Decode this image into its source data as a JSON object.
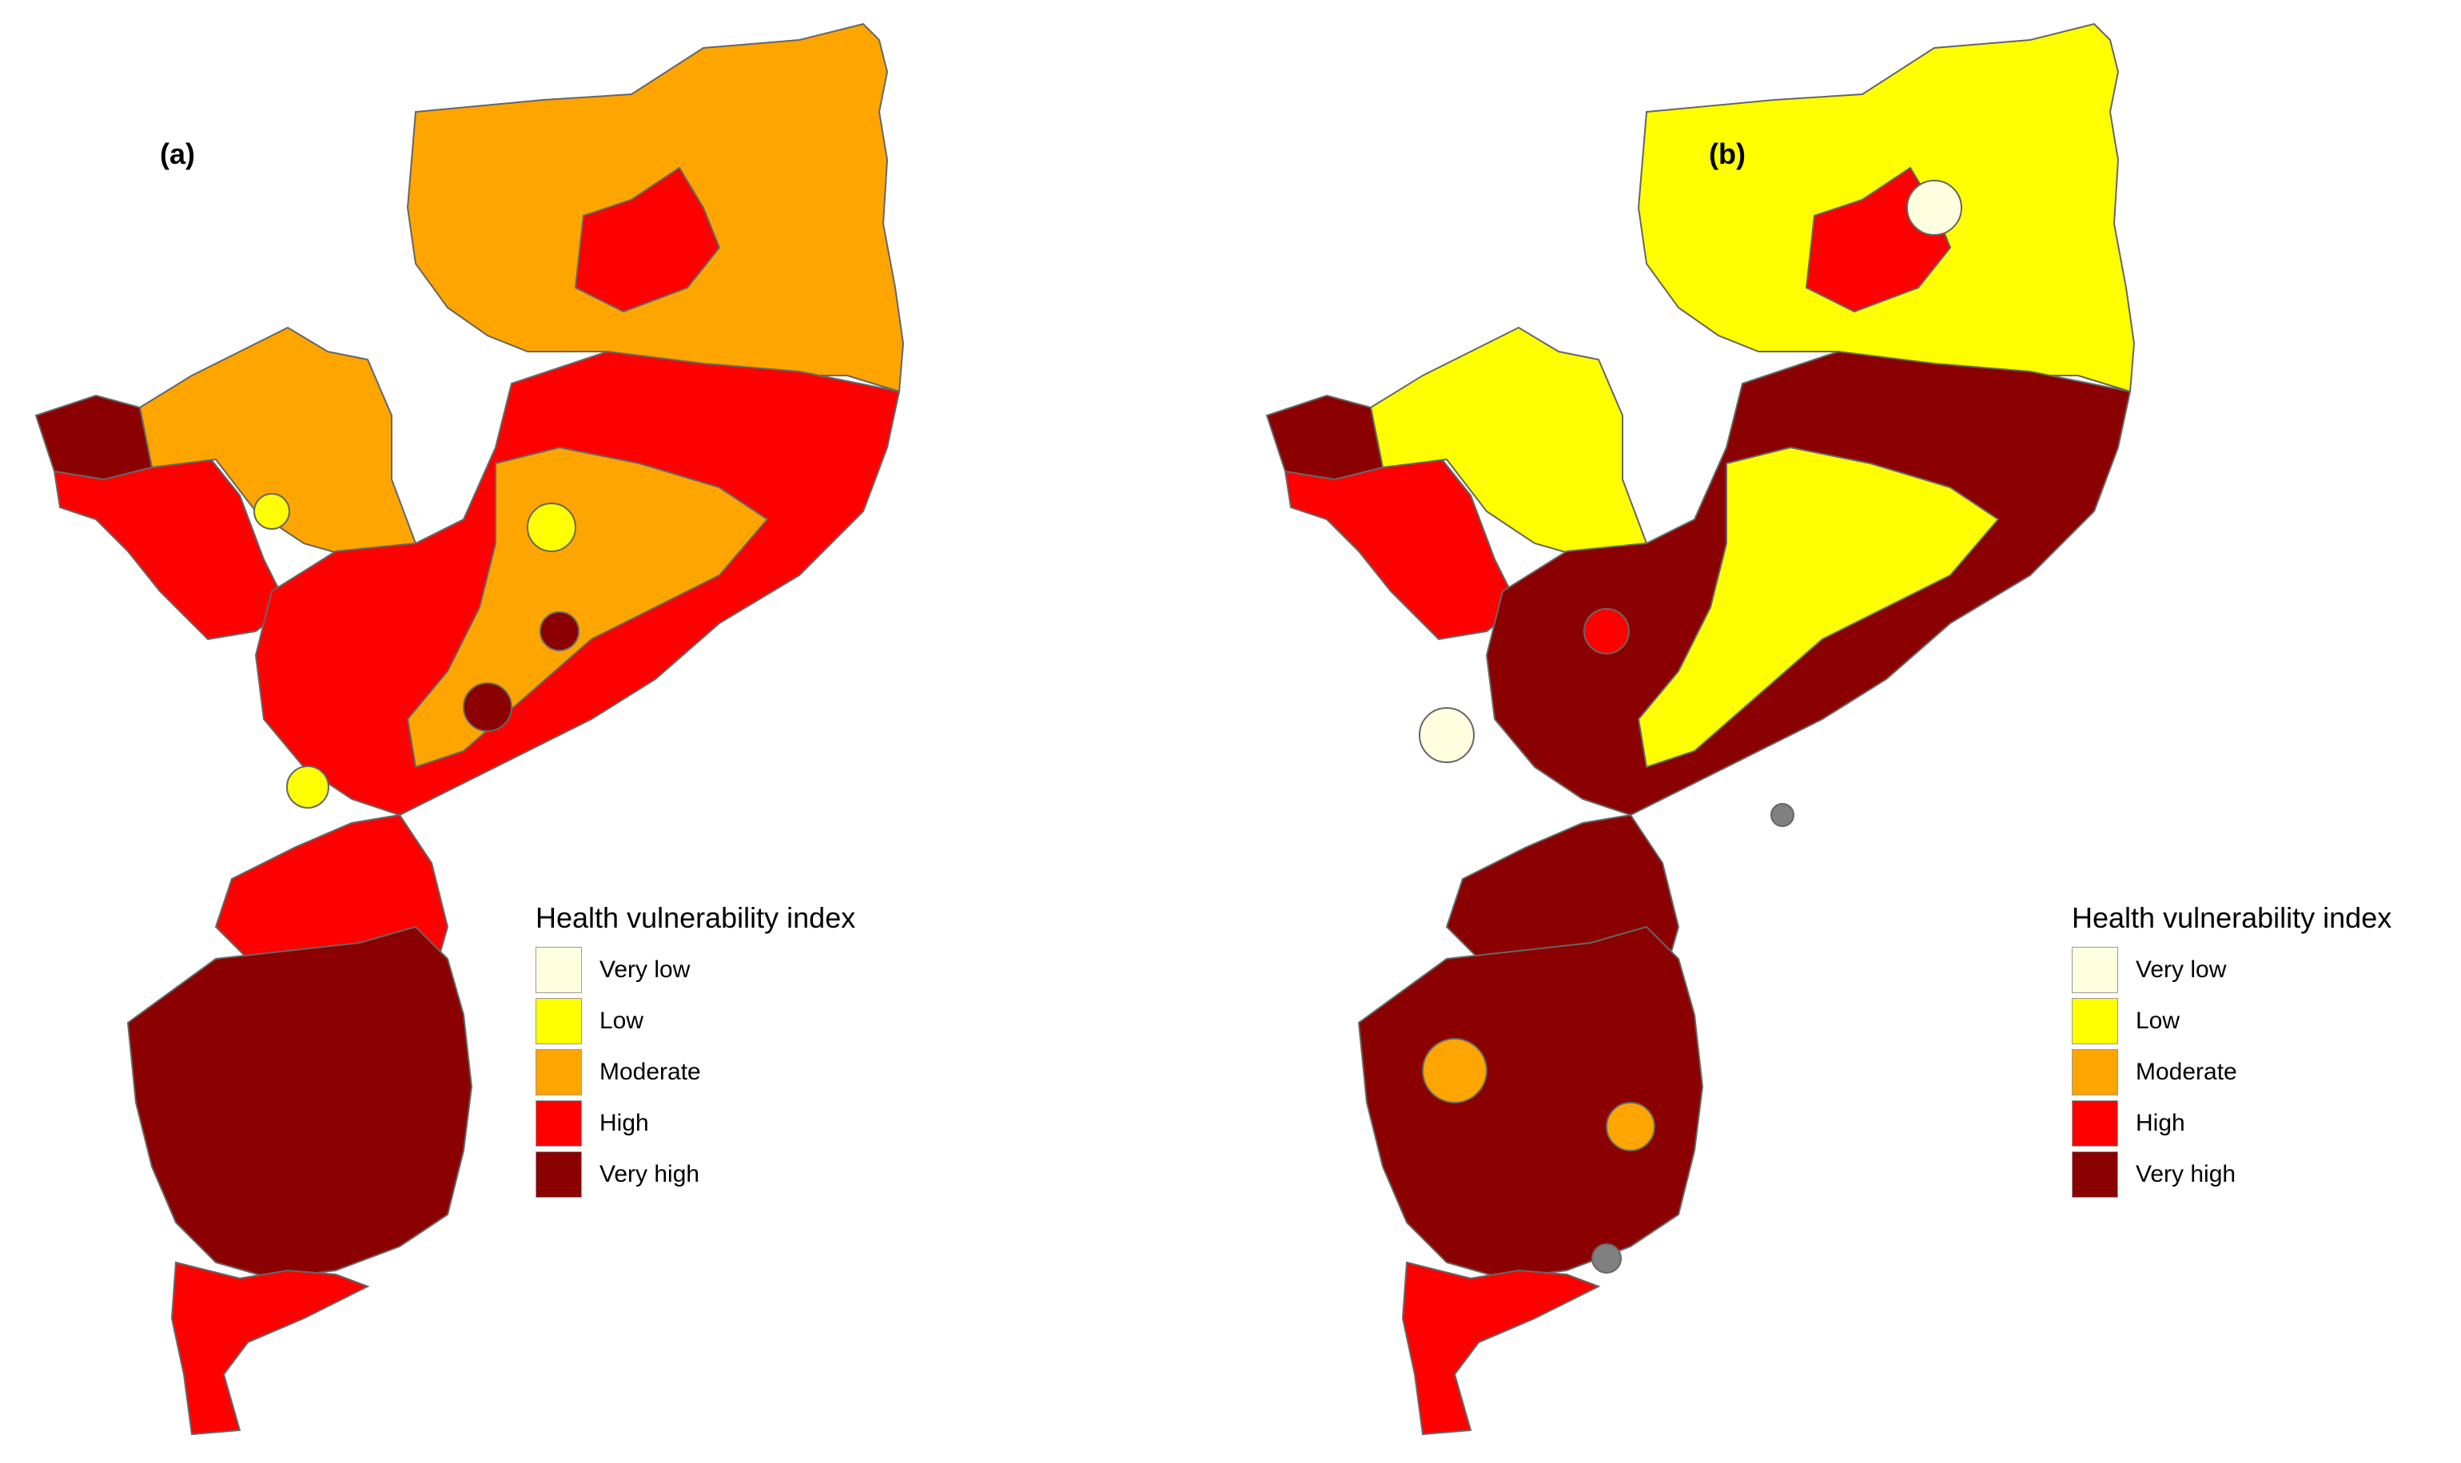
{
  "panels": [
    {
      "label": "(a)",
      "legend": {
        "title": "Health vulnerability index",
        "items": [
          {
            "label": "Very low",
            "color": "#FFFFE0"
          },
          {
            "label": "Low",
            "color": "#FFFF00"
          },
          {
            "label": "Moderate",
            "color": "#FFA500"
          },
          {
            "label": "High",
            "color": "#FF0000"
          },
          {
            "label": "Very high",
            "color": "#8B0000"
          }
        ]
      },
      "regions": {
        "north": "Moderate",
        "north_inner": "High",
        "northwest": "Very high",
        "west": "High",
        "west_upper": "Moderate",
        "center": "High",
        "center_east": "Moderate",
        "south_upper": "High",
        "south_core": "Very high",
        "south_tip": "High",
        "dots": [
          "Low",
          "Low",
          "Low",
          "Very high",
          "Very high"
        ]
      }
    },
    {
      "label": "(b)",
      "legend": {
        "title": "Health vulnerability index",
        "items": [
          {
            "label": "Very low",
            "color": "#FFFFE0"
          },
          {
            "label": "Low",
            "color": "#FFFF00"
          },
          {
            "label": "Moderate",
            "color": "#FFA500"
          },
          {
            "label": "High",
            "color": "#FF0000"
          },
          {
            "label": "Very high",
            "color": "#8B0000"
          }
        ]
      },
      "regions": {
        "north": "Low",
        "north_inner": "High",
        "northwest": "Very high",
        "west": "High",
        "west_upper": "Low",
        "center": "Very high",
        "center_east": "Low",
        "south_upper": "Very high",
        "south_core": "Very high",
        "south_tip": "High",
        "dots": [
          "Very low",
          "Very low",
          "Moderate",
          "High",
          "Moderate"
        ]
      },
      "missing_color": "#808080"
    }
  ]
}
